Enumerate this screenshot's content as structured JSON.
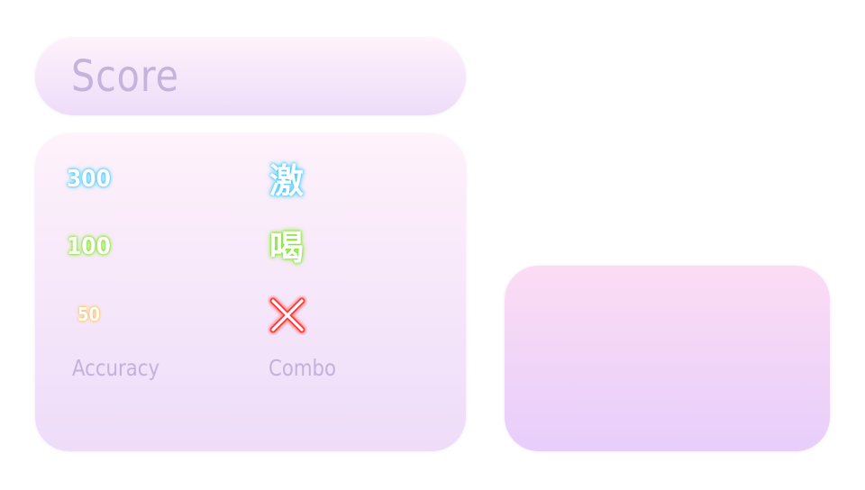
{
  "score_panel": {
    "title": "Score"
  },
  "stats_panel": {
    "judgements": [
      {
        "label": "300",
        "kanji": "激",
        "color": "#3fc8ff"
      },
      {
        "label": "100",
        "kanji": "喝",
        "color": "#7fe12a"
      },
      {
        "label": "50",
        "icon": "miss-x-icon",
        "color": "#ff3b3b"
      }
    ],
    "accuracy_label": "Accuracy",
    "combo_label": "Combo"
  },
  "colors": {
    "panel_top": "#fef2fb",
    "panel_bottom": "#eedcf9",
    "result_top": "#fcdcf4",
    "result_bottom": "#e7cefb",
    "label_text": "#c6b1da",
    "great_glow": "#3fc8ff",
    "good_glow": "#7fe12a",
    "meh_glow": "#ffb347",
    "miss_glow": "#ff3b3b"
  }
}
